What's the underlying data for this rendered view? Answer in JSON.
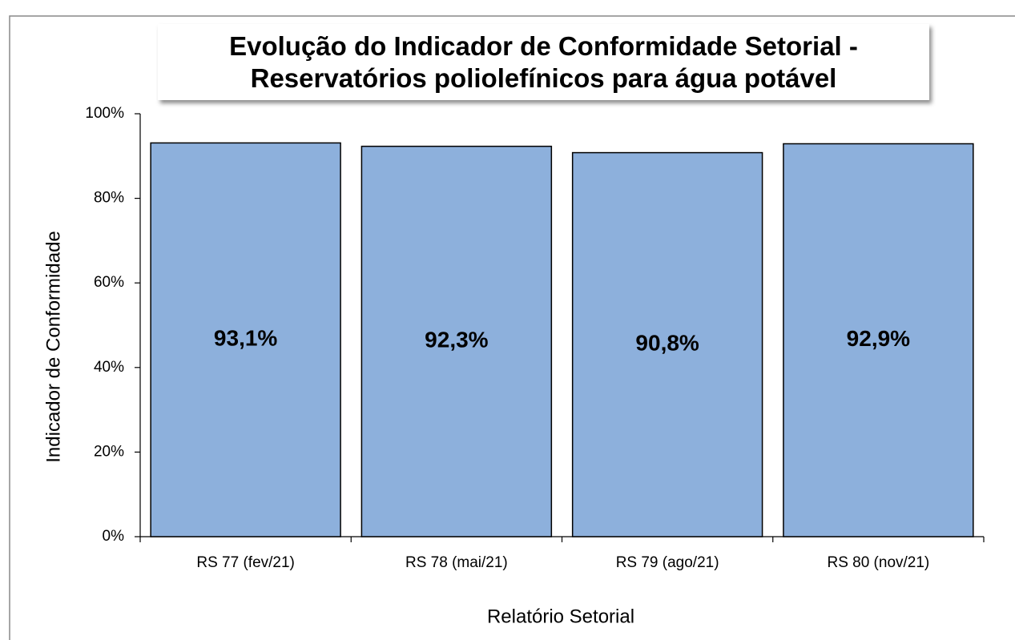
{
  "chart_data": {
    "type": "bar",
    "title": "Evolução do Indicador de Conformidade Setorial - Reservatórios poliolefínicos para água potável",
    "x_label": "Relatório Setorial",
    "y_label": "Indicador de Conformidade",
    "categories": [
      "RS 77 (fev/21)",
      "RS 78 (mai/21)",
      "RS 79 (ago/21)",
      "RS 80 (nov/21)"
    ],
    "values": [
      93.1,
      92.3,
      90.8,
      92.9
    ],
    "value_labels": [
      "93,1%",
      "92,3%",
      "90,8%",
      "92,9%"
    ],
    "color": "#8db0dc",
    "ylim": [
      0,
      100
    ],
    "yticks": [
      {
        "value": 0,
        "label": "0%"
      },
      {
        "value": 20,
        "label": "20%"
      },
      {
        "value": 40,
        "label": "40%"
      },
      {
        "value": 60,
        "label": "60%"
      },
      {
        "value": 80,
        "label": "80%"
      },
      {
        "value": 100,
        "label": "100%"
      }
    ],
    "grid": false
  }
}
